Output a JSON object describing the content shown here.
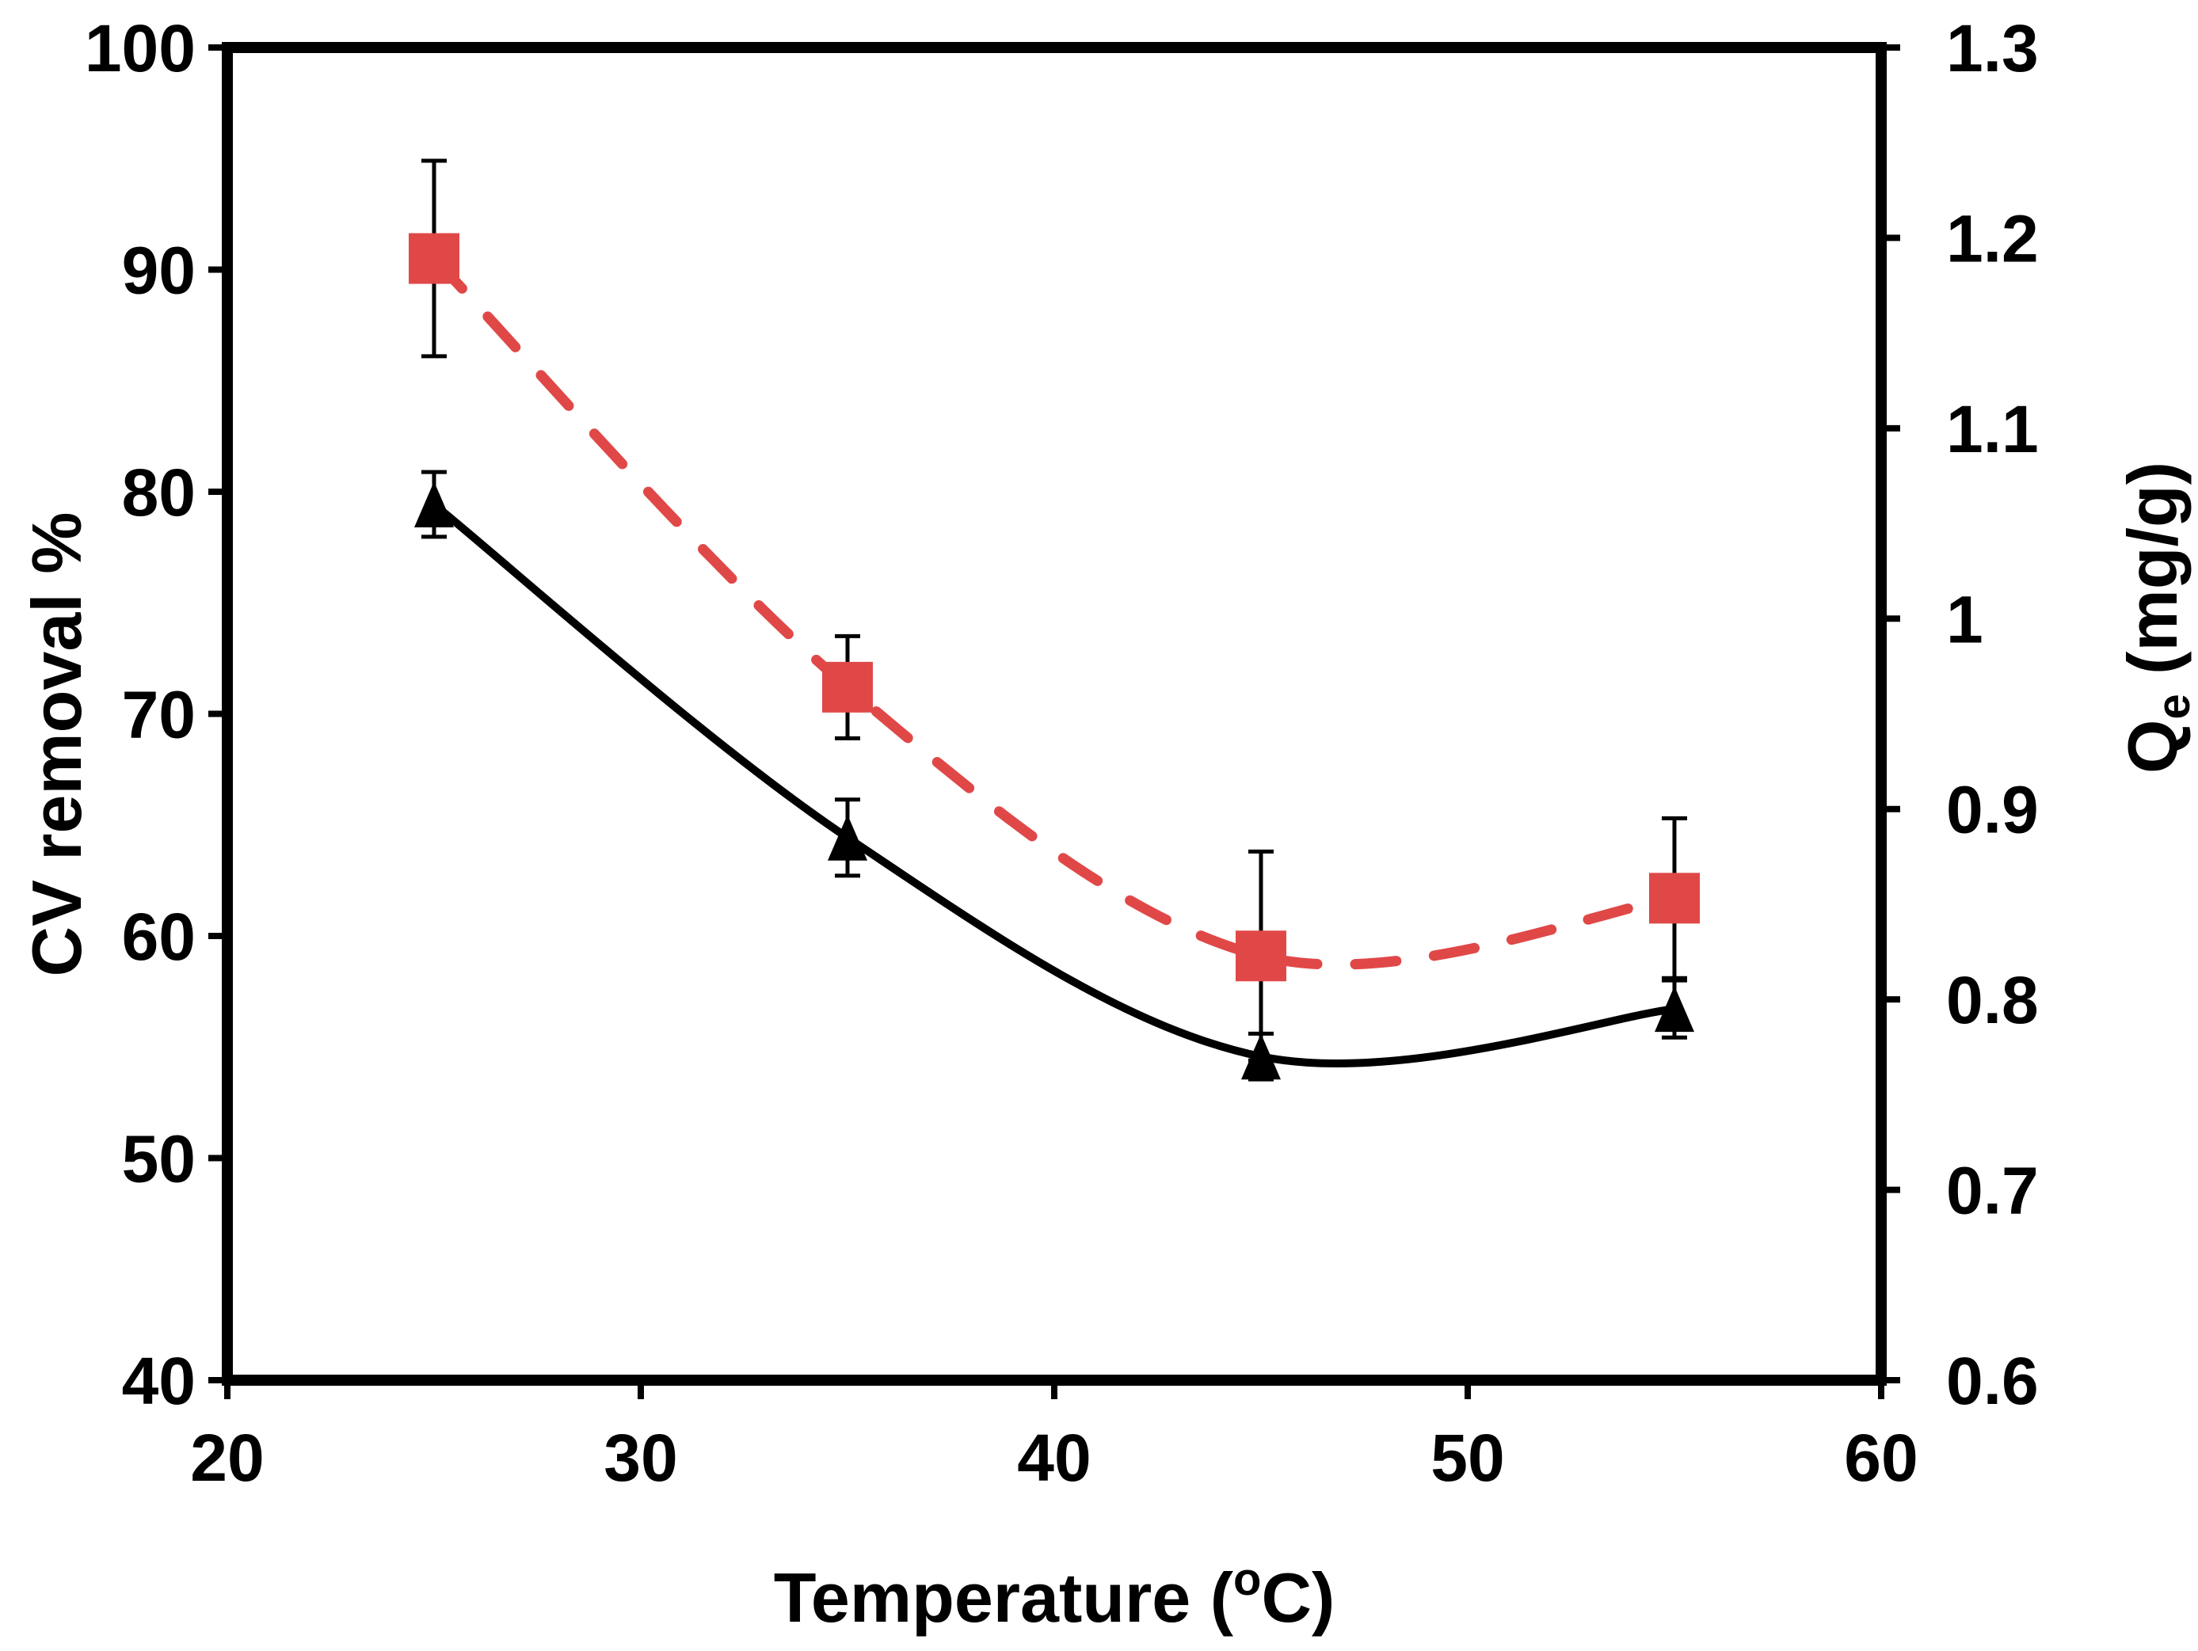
{
  "chart_data": {
    "type": "line",
    "title": "",
    "xlabel": "Temperature (",
    "xlabel_sup": "o",
    "xlabel_end": "C)",
    "ylabel_left": "CV removal %",
    "ylabel_right_main": "Q",
    "ylabel_right_sub": "e",
    "ylabel_right_unit": " (mg/g)",
    "xlim": [
      20,
      60
    ],
    "ylim_left": [
      40,
      100
    ],
    "ylim_right": [
      0.6,
      1.3
    ],
    "x_ticks": [
      "20",
      "30",
      "40",
      "50",
      "60"
    ],
    "y_left_ticks": [
      "40",
      "50",
      "60",
      "70",
      "80",
      "90",
      "100"
    ],
    "y_right_ticks": [
      "0.6",
      "0.7",
      "0.8",
      "0.9",
      "1",
      "1.1",
      "1.2",
      "1.3"
    ],
    "grid": false,
    "x": [
      25,
      35,
      45,
      55
    ],
    "series": [
      {
        "axis": "left",
        "marker": "square",
        "line_style": "dashed",
        "color": "#e04848",
        "values": [
          90.5,
          71.2,
          59.1,
          61.7
        ],
        "errors": [
          4.4,
          2.3,
          4.7,
          3.6
        ]
      },
      {
        "axis": "right",
        "marker": "triangle",
        "line_style": "solid",
        "color": "#000000",
        "values": [
          1.06,
          0.885,
          0.77,
          0.795
        ],
        "errors": [
          0.017,
          0.02,
          0.012,
          0.015
        ]
      }
    ]
  }
}
